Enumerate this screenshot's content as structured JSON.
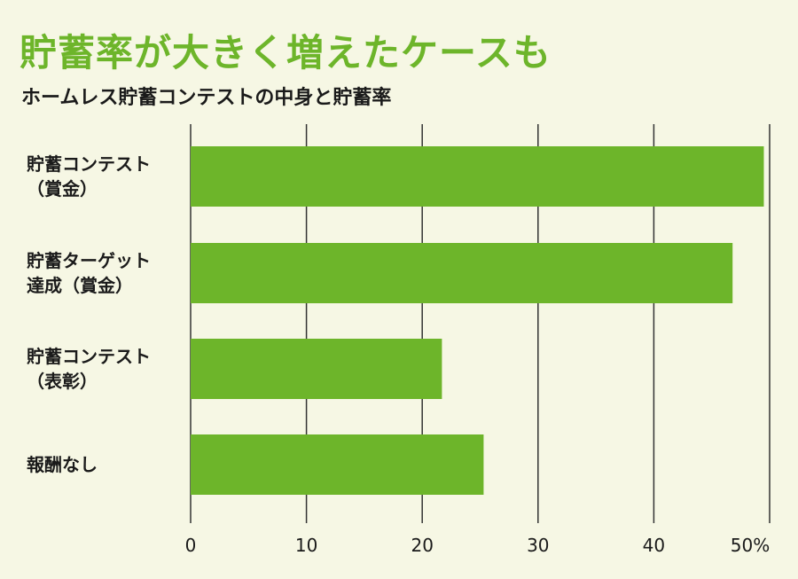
{
  "title": "貯蓄率が大きく増えたケースも",
  "subtitle": "ホームレス貯蓄コンテストの中身と貯蓄率",
  "colors": {
    "bar": "#6db52a",
    "title": "#6db52a",
    "background": "#f6f7e4",
    "grid": "#333333"
  },
  "chart_data": {
    "type": "bar",
    "orientation": "horizontal",
    "categories": [
      [
        "貯蓄コンテスト",
        "（賞金）"
      ],
      [
        "貯蓄ターゲット",
        "達成（賞金）"
      ],
      [
        "貯蓄コンテスト",
        "（表彰）"
      ],
      [
        "報酬なし"
      ]
    ],
    "values": [
      49.5,
      46.8,
      21.7,
      25.3
    ],
    "xlim": [
      0,
      50
    ],
    "xticks": [
      0,
      10,
      20,
      30,
      40,
      50
    ],
    "tick_labels": [
      "0",
      "10",
      "20",
      "30",
      "40",
      "50%"
    ],
    "grid": true
  }
}
